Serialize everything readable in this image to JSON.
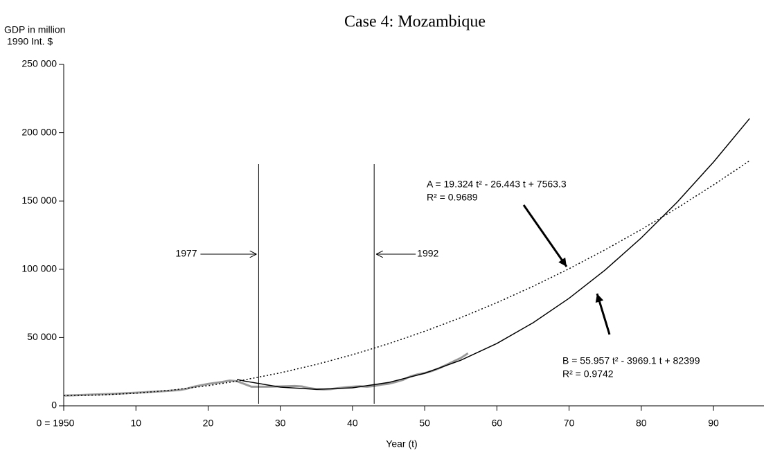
{
  "chart_data": {
    "type": "line",
    "title": "Case 4: Mozambique",
    "y_label_lines": [
      "GDP in million",
      "1990 Int. $"
    ],
    "x_label": "Year (t)",
    "xlim": [
      0,
      97
    ],
    "xticks": [
      {
        "value": 0,
        "label": "0 = 1950"
      },
      10,
      20,
      30,
      40,
      50,
      60,
      70,
      80,
      90
    ],
    "ylim": [
      0,
      250000
    ],
    "yticks": [
      0,
      {
        "value": 50000,
        "label": "50 000"
      },
      {
        "value": 100000,
        "label": "100 000"
      },
      {
        "value": 150000,
        "label": "150 000"
      },
      {
        "value": 200000,
        "label": "200 000"
      },
      {
        "value": 250000,
        "label": "250 000"
      }
    ],
    "series": [
      {
        "name": "GDP",
        "color": "#999999",
        "style": "solid",
        "x": [
          0,
          2,
          4,
          6,
          8,
          10,
          12,
          14,
          16,
          17,
          18,
          19,
          20,
          21,
          22,
          23,
          24,
          25,
          26,
          28,
          30,
          32,
          33,
          34,
          35,
          36,
          37,
          38,
          39,
          40,
          41,
          42,
          43,
          44,
          45,
          46,
          47,
          48,
          49,
          50,
          51,
          52,
          53,
          54,
          55,
          56
        ],
        "values": [
          7500,
          7800,
          8200,
          8600,
          9100,
          9600,
          10200,
          10800,
          11500,
          12500,
          14000,
          15000,
          16000,
          16800,
          17500,
          18500,
          18000,
          16000,
          14000,
          14000,
          14200,
          14500,
          14200,
          13000,
          12200,
          12000,
          12200,
          13000,
          13500,
          14000,
          14300,
          14000,
          14500,
          15500,
          16200,
          17500,
          19000,
          21500,
          23000,
          24000,
          25500,
          27500,
          30000,
          32500,
          35000,
          38500
        ]
      },
      {
        "name": "A",
        "color": "#000000",
        "style": "dotted",
        "x": [
          0,
          5,
          10,
          15,
          20,
          25,
          30,
          35,
          40,
          45,
          50,
          55,
          60,
          65,
          70,
          75,
          80,
          85,
          90,
          95
        ],
        "values": [
          7563,
          7914,
          9231,
          11515,
          14764,
          18980,
          24162,
          30310,
          37424,
          45504,
          54551,
          64564,
          75543,
          87488,
          100400,
          114278,
          129121,
          144932,
          161708,
          179450
        ]
      },
      {
        "name": "B",
        "color": "#000000",
        "style": "solid",
        "x": [
          24,
          25,
          30,
          35,
          40,
          45,
          50,
          55,
          60,
          65,
          70,
          75,
          80,
          85,
          90,
          95
        ],
        "values": [
          19373,
          18144,
          13687,
          12027,
          13166,
          17102,
          23837,
          33368,
          45698,
          60825,
          78751,
          99474,
          122996,
          149314,
          178432,
          210346
        ]
      }
    ],
    "markers": [
      {
        "label": "1977",
        "x": 27
      },
      {
        "label": "1992",
        "x": 43
      }
    ],
    "annotations": [
      {
        "lines": [
          "A = 19.324 t² - 26.443 t + 7563.3",
          "R² = 0.9689"
        ]
      },
      {
        "lines": [
          "B = 55.957 t² - 3969.1 t + 82399",
          "R² = 0.9742"
        ]
      }
    ]
  }
}
